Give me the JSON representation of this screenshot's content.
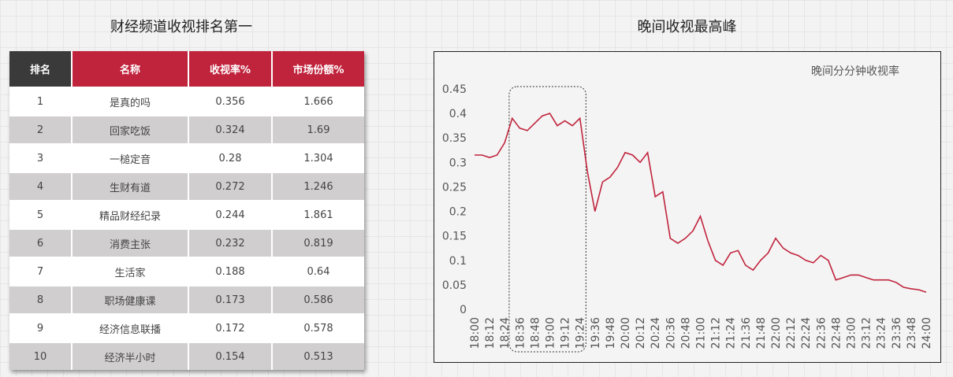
{
  "table": {
    "title": "财经频道收视排名第一",
    "header": [
      "排名",
      "名称",
      "收视率%",
      "市场份额%"
    ],
    "rows": [
      [
        "1",
        "是真的吗",
        "0.356",
        "1.666"
      ],
      [
        "2",
        "回家吃饭",
        "0.324",
        "1.69"
      ],
      [
        "3",
        "一槌定音",
        "0.28",
        "1.304"
      ],
      [
        "4",
        "生财有道",
        "0.272",
        "1.246"
      ],
      [
        "5",
        "精品财经纪录",
        "0.244",
        "1.861"
      ],
      [
        "6",
        "消费主张",
        "0.232",
        "0.819"
      ],
      [
        "7",
        "生活家",
        "0.188",
        "0.64"
      ],
      [
        "8",
        "职场健康课",
        "0.173",
        "0.586"
      ],
      [
        "9",
        "经济信息联播",
        "0.172",
        "0.578"
      ],
      [
        "10",
        "经济半小时",
        "0.154",
        "0.513"
      ]
    ]
  },
  "chart_data": {
    "type": "line",
    "title": "晚间收视最高峰",
    "x": [
      "18:00",
      null,
      "18:12",
      null,
      "18:24",
      null,
      "18:36",
      null,
      "18:48",
      null,
      "19:00",
      null,
      "19:12",
      null,
      "19:24",
      null,
      "19:36",
      null,
      "19:48",
      null,
      "20:00",
      null,
      "20:12",
      null,
      "20:24",
      null,
      "20:36",
      null,
      "20:48",
      null,
      "21:00",
      null,
      "21:12",
      null,
      "21:24",
      null,
      "21:36",
      null,
      "21:48",
      null,
      "22:00",
      null,
      "22:12",
      null,
      "22:24",
      null,
      "22:36",
      null,
      "22:48",
      null,
      "23:00",
      null,
      "23:12",
      null,
      "23:24",
      null,
      "23:36",
      null,
      "23:48",
      null,
      "24:00"
    ],
    "series": [
      {
        "name": "晚间分分钟收视率",
        "color": "#c0233c",
        "values": [
          0.315,
          0.315,
          0.31,
          0.315,
          0.34,
          0.39,
          0.37,
          0.365,
          0.38,
          0.395,
          0.4,
          0.375,
          0.385,
          0.375,
          0.39,
          0.28,
          0.2,
          0.26,
          0.27,
          0.29,
          0.32,
          0.315,
          0.3,
          0.32,
          0.23,
          0.24,
          0.145,
          0.135,
          0.145,
          0.16,
          0.19,
          0.14,
          0.1,
          0.09,
          0.115,
          0.12,
          0.09,
          0.08,
          0.1,
          0.115,
          0.145,
          0.125,
          0.115,
          0.11,
          0.1,
          0.095,
          0.11,
          0.1,
          0.06,
          0.065,
          0.07,
          0.07,
          0.065,
          0.06,
          0.06,
          0.06,
          0.055,
          0.045,
          0.042,
          0.04,
          0.035
        ]
      }
    ],
    "ylim": [
      0,
      0.45
    ],
    "yticks": [
      0,
      0.05,
      0.1,
      0.15,
      0.2,
      0.25,
      0.3,
      0.35,
      0.4,
      0.45
    ],
    "grid": false
  }
}
